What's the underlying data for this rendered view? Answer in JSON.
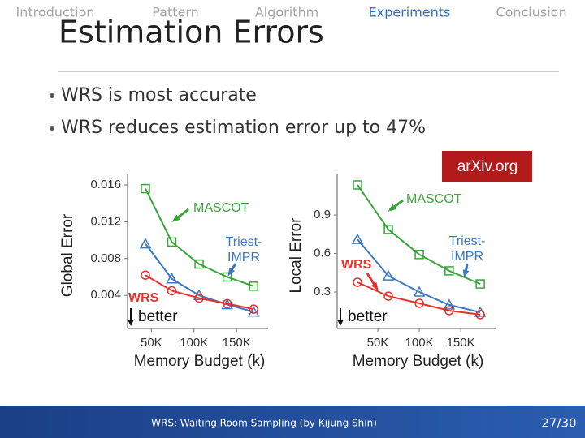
{
  "nav": {
    "items": [
      "Introduction",
      "Pattern",
      "Algorithm",
      "Experiments",
      "Conclusion"
    ],
    "active": 3
  },
  "header": {
    "title": "Estimation Errors"
  },
  "bullets": [
    "WRS is most accurate",
    "WRS reduces estimation error up to 47%"
  ],
  "badge": "arXiv.org",
  "footer": {
    "text": "WRS: Waiting Room Sampling (by Kijung Shin)",
    "page": "27/30"
  },
  "chart_data": [
    {
      "type": "line",
      "y_label": "Global Error",
      "x_label": "Memory Budget (k)",
      "xlim": [
        22,
        187
      ],
      "xticks": [
        {
          "value": 50,
          "label": "50K"
        },
        {
          "value": 100,
          "label": "100K"
        },
        {
          "value": 150,
          "label": "150K"
        }
      ],
      "ylim": [
        0.0004,
        0.01715
      ],
      "yticks": [
        0.004,
        0.008,
        0.012,
        0.016
      ],
      "x": [
        43,
        74,
        106,
        139,
        170
      ],
      "annotation": "better",
      "series": [
        {
          "label": [
            "MASCOT"
          ],
          "color": "#3aa43a",
          "marker": "square",
          "values": [
            0.0156,
            0.0098,
            0.0074,
            0.006,
            0.005
          ]
        },
        {
          "label": [
            "Triest-",
            "IMPR"
          ],
          "color": "#3b78c0",
          "marker": "triangle",
          "values": [
            0.0096,
            0.0058,
            0.004,
            0.003,
            0.0022
          ]
        },
        {
          "label": [
            "WRS"
          ],
          "color": "#e8312a",
          "marker": "circle",
          "values": [
            0.0062,
            0.0045,
            0.0037,
            0.0031,
            0.0025
          ]
        }
      ]
    },
    {
      "type": "line",
      "y_label": "Local Error",
      "x_label": "Memory Budget (k)",
      "xlim": [
        1,
        192
      ],
      "xticks": [
        {
          "value": 50,
          "label": "50K"
        },
        {
          "value": 100,
          "label": "100K"
        },
        {
          "value": 150,
          "label": "150K"
        }
      ],
      "ylim": [
        0.016,
        1.216
      ],
      "yticks": [
        0.3,
        0.6,
        0.9
      ],
      "x": [
        25.5,
        62.7,
        100,
        136,
        173.5
      ],
      "annotation": "better",
      "series": [
        {
          "label": [
            "MASCOT"
          ],
          "color": "#3aa43a",
          "marker": "square",
          "values": [
            1.134,
            0.787,
            0.592,
            0.465,
            0.363
          ]
        },
        {
          "label": [
            "Triest-",
            "IMPR"
          ],
          "color": "#3b78c0",
          "marker": "triangle",
          "values": [
            0.71,
            0.426,
            0.3,
            0.2,
            0.142
          ]
        },
        {
          "label": [
            "WRS"
          ],
          "color": "#e8312a",
          "marker": "circle",
          "values": [
            0.376,
            0.268,
            0.212,
            0.155,
            0.124
          ]
        }
      ]
    }
  ]
}
